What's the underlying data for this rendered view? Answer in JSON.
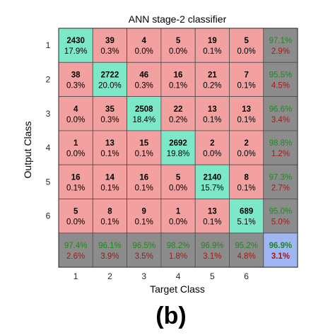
{
  "chart_data": {
    "type": "heatmap",
    "title": "ANN stage-2 classifier",
    "xlabel": "Target Class",
    "ylabel": "Output Class",
    "panel_label": "(b)",
    "x_ticks": [
      "1",
      "2",
      "3",
      "4",
      "5",
      "6"
    ],
    "y_ticks": [
      "1",
      "2",
      "3",
      "4",
      "5",
      "6"
    ],
    "matrix": [
      [
        {
          "count": "2430",
          "pct": "17.9%"
        },
        {
          "count": "39",
          "pct": "0.3%"
        },
        {
          "count": "4",
          "pct": "0.0%"
        },
        {
          "count": "5",
          "pct": "0.0%"
        },
        {
          "count": "19",
          "pct": "0.1%"
        },
        {
          "count": "5",
          "pct": "0.0%"
        }
      ],
      [
        {
          "count": "38",
          "pct": "0.3%"
        },
        {
          "count": "2722",
          "pct": "20.0%"
        },
        {
          "count": "46",
          "pct": "0.3%"
        },
        {
          "count": "16",
          "pct": "0.1%"
        },
        {
          "count": "21",
          "pct": "0.2%"
        },
        {
          "count": "7",
          "pct": "0.1%"
        }
      ],
      [
        {
          "count": "4",
          "pct": "0.0%"
        },
        {
          "count": "35",
          "pct": "0.3%"
        },
        {
          "count": "2508",
          "pct": "18.4%"
        },
        {
          "count": "22",
          "pct": "0.2%"
        },
        {
          "count": "13",
          "pct": "0.1%"
        },
        {
          "count": "13",
          "pct": "0.1%"
        }
      ],
      [
        {
          "count": "1",
          "pct": "0.0%"
        },
        {
          "count": "13",
          "pct": "0.1%"
        },
        {
          "count": "15",
          "pct": "0.1%"
        },
        {
          "count": "2692",
          "pct": "19.8%"
        },
        {
          "count": "2",
          "pct": "0.0%"
        },
        {
          "count": "2",
          "pct": "0.0%"
        }
      ],
      [
        {
          "count": "16",
          "pct": "0.1%"
        },
        {
          "count": "14",
          "pct": "0.1%"
        },
        {
          "count": "16",
          "pct": "0.1%"
        },
        {
          "count": "5",
          "pct": "0.0%"
        },
        {
          "count": "2140",
          "pct": "15.7%"
        },
        {
          "count": "8",
          "pct": "0.1%"
        }
      ],
      [
        {
          "count": "5",
          "pct": "0.0%"
        },
        {
          "count": "8",
          "pct": "0.1%"
        },
        {
          "count": "9",
          "pct": "0.1%"
        },
        {
          "count": "1",
          "pct": "0.0%"
        },
        {
          "count": "13",
          "pct": "0.1%"
        },
        {
          "count": "689",
          "pct": "5.1%"
        }
      ]
    ],
    "row_summary": [
      {
        "correct": "97.1%",
        "wrong": "2.9%"
      },
      {
        "correct": "95.5%",
        "wrong": "4.5%"
      },
      {
        "correct": "96.6%",
        "wrong": "3.4%"
      },
      {
        "correct": "98.8%",
        "wrong": "1.2%"
      },
      {
        "correct": "97.3%",
        "wrong": "2.7%"
      },
      {
        "correct": "95.0%",
        "wrong": "5.0%"
      }
    ],
    "col_summary": [
      {
        "correct": "97.4%",
        "wrong": "2.6%"
      },
      {
        "correct": "96.1%",
        "wrong": "3.9%"
      },
      {
        "correct": "96.5%",
        "wrong": "3.5%"
      },
      {
        "correct": "98.2%",
        "wrong": "1.8%"
      },
      {
        "correct": "96.9%",
        "wrong": "3.1%"
      },
      {
        "correct": "95.2%",
        "wrong": "4.8%"
      }
    ],
    "overall": {
      "correct": "96.9%",
      "wrong": "3.1%"
    }
  },
  "colors": {
    "diagonal": "#7de8c8",
    "off_diagonal": "#f2a0a0",
    "summary": "#8c8c8c",
    "overall": "#9fb6f2",
    "correct_text": "#1e8a1e",
    "wrong_text": "#a31919"
  }
}
